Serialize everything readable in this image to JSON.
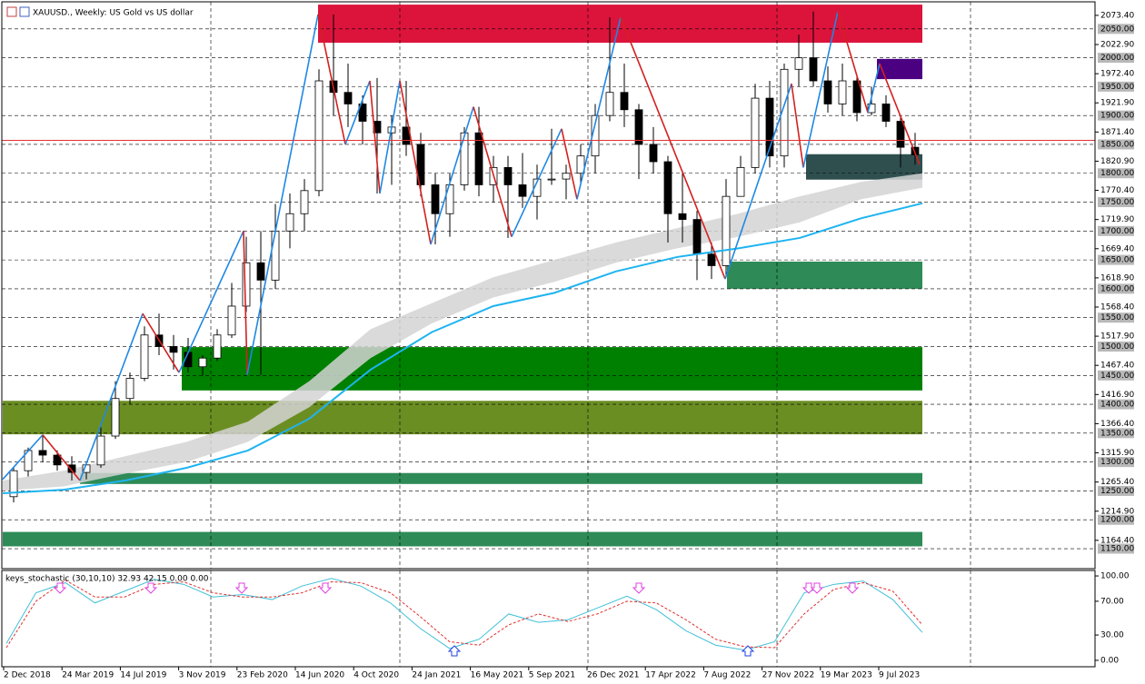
{
  "chart_data": [
    {
      "type": "candlestick",
      "title": "XAUUSD., Weekly:  US Gold vs US dollar",
      "xtick_labels": [
        "2 Dec 2018",
        "24 Mar 2019",
        "14 Jul 2019",
        "3 Nov 2019",
        "23 Feb 2020",
        "14 Jun 2020",
        "4 Oct 2020",
        "24 Jan 2021",
        "16 May 2021",
        "5 Sep 2021",
        "26 Dec 2021",
        "17 Apr 2022",
        "7 Aug 2022",
        "27 Nov 2022",
        "19 Mar 2023",
        "9 Jul 2023"
      ],
      "ohlc": [
        [
          1240,
          1290,
          1230,
          1285
        ],
        [
          1285,
          1325,
          1275,
          1320
        ],
        [
          1320,
          1347,
          1300,
          1312
        ],
        [
          1312,
          1320,
          1285,
          1295
        ],
        [
          1295,
          1310,
          1268,
          1282
        ],
        [
          1282,
          1300,
          1270,
          1295
        ],
        [
          1295,
          1360,
          1290,
          1345
        ],
        [
          1345,
          1440,
          1340,
          1410
        ],
        [
          1410,
          1455,
          1400,
          1445
        ],
        [
          1445,
          1535,
          1440,
          1520
        ],
        [
          1520,
          1557,
          1485,
          1500
        ],
        [
          1500,
          1520,
          1460,
          1490
        ],
        [
          1490,
          1515,
          1455,
          1465
        ],
        [
          1465,
          1485,
          1450,
          1480
        ],
        [
          1480,
          1530,
          1475,
          1520
        ],
        [
          1520,
          1610,
          1515,
          1570
        ],
        [
          1570,
          1690,
          1560,
          1645
        ],
        [
          1645,
          1700,
          1451,
          1615
        ],
        [
          1615,
          1747,
          1600,
          1700
        ],
        [
          1700,
          1765,
          1670,
          1730
        ],
        [
          1730,
          1790,
          1700,
          1770
        ],
        [
          1770,
          1980,
          1760,
          1960
        ],
        [
          1960,
          2075,
          1900,
          1940
        ],
        [
          1940,
          1990,
          1880,
          1920
        ],
        [
          1920,
          1935,
          1850,
          1890
        ],
        [
          1890,
          1965,
          1765,
          1870
        ],
        [
          1870,
          1900,
          1780,
          1880
        ],
        [
          1880,
          1960,
          1830,
          1850
        ],
        [
          1850,
          1870,
          1760,
          1780
        ],
        [
          1780,
          1800,
          1677,
          1730
        ],
        [
          1730,
          1800,
          1690,
          1780
        ],
        [
          1780,
          1880,
          1770,
          1870
        ],
        [
          1870,
          1915,
          1760,
          1780
        ],
        [
          1780,
          1830,
          1750,
          1810
        ],
        [
          1810,
          1830,
          1688,
          1780
        ],
        [
          1780,
          1835,
          1740,
          1760
        ],
        [
          1760,
          1815,
          1720,
          1790
        ],
        [
          1790,
          1877,
          1780,
          1790
        ],
        [
          1790,
          1815,
          1755,
          1800
        ],
        [
          1800,
          1850,
          1780,
          1830
        ],
        [
          1830,
          1920,
          1800,
          1900
        ],
        [
          1900,
          2070,
          1890,
          1940
        ],
        [
          1940,
          1990,
          1880,
          1910
        ],
        [
          1910,
          1920,
          1790,
          1850
        ],
        [
          1850,
          1880,
          1800,
          1820
        ],
        [
          1820,
          1830,
          1680,
          1730
        ],
        [
          1730,
          1800,
          1680,
          1720
        ],
        [
          1720,
          1735,
          1615,
          1660
        ],
        [
          1660,
          1680,
          1617,
          1640
        ],
        [
          1640,
          1790,
          1620,
          1760
        ],
        [
          1760,
          1830,
          1760,
          1810
        ],
        [
          1810,
          1955,
          1800,
          1930
        ],
        [
          1930,
          1960,
          1810,
          1830
        ],
        [
          1830,
          1990,
          1810,
          1980
        ],
        [
          1980,
          2040,
          1950,
          2000
        ],
        [
          2000,
          2080,
          1950,
          1960
        ],
        [
          1960,
          1985,
          1905,
          1920
        ],
        [
          1920,
          1990,
          1900,
          1960
        ],
        [
          1960,
          1970,
          1890,
          1905
        ],
        [
          1905,
          1950,
          1900,
          1920
        ],
        [
          1920,
          1935,
          1880,
          1890
        ],
        [
          1890,
          1900,
          1810,
          1845
        ],
        [
          1845,
          1870,
          1815,
          1832
        ]
      ],
      "ylim": [
        1117,
        2100
      ],
      "yticks": [
        {
          "value": 2073.4,
          "label": "2073.40"
        },
        {
          "value": 2022.9,
          "label": "2022.90"
        },
        {
          "value": 1972.4,
          "label": "1972.40"
        },
        {
          "value": 1921.9,
          "label": "1921.90"
        },
        {
          "value": 1871.4,
          "label": "1871.40"
        },
        {
          "value": 1820.9,
          "label": "1820.90"
        },
        {
          "value": 1770.4,
          "label": "1770.40"
        },
        {
          "value": 1719.9,
          "label": "1719.90"
        },
        {
          "value": 1669.4,
          "label": "1669.40"
        },
        {
          "value": 1618.9,
          "label": "1618.90"
        },
        {
          "value": 1568.4,
          "label": "1568.40"
        },
        {
          "value": 1517.9,
          "label": "1517.90"
        },
        {
          "value": 1467.4,
          "label": "1467.40"
        },
        {
          "value": 1416.9,
          "label": "1416.90"
        },
        {
          "value": 1366.4,
          "label": "1366.40"
        },
        {
          "value": 1315.9,
          "label": "1315.90"
        },
        {
          "value": 1265.4,
          "label": "1265.40"
        },
        {
          "value": 1214.9,
          "label": "1214.90"
        },
        {
          "value": 1164.4,
          "label": "1164.40"
        }
      ],
      "levels": [
        {
          "value": 2050,
          "label": "2050.00"
        },
        {
          "value": 2000,
          "label": "2000.00"
        },
        {
          "value": 1950,
          "label": "1950.00"
        },
        {
          "value": 1900,
          "label": "1900.00"
        },
        {
          "value": 1850,
          "label": "1850.00"
        },
        {
          "value": 1800,
          "label": "1800.00"
        },
        {
          "value": 1750,
          "label": "1750.00"
        },
        {
          "value": 1700,
          "label": "1700.00"
        },
        {
          "value": 1650,
          "label": "1650.00"
        },
        {
          "value": 1600,
          "label": "1600.00"
        },
        {
          "value": 1550,
          "label": "1550.00"
        },
        {
          "value": 1500,
          "label": "1500.00"
        },
        {
          "value": 1450,
          "label": "1450.00"
        },
        {
          "value": 1400,
          "label": "1400.00"
        },
        {
          "value": 1350,
          "label": "1350.00"
        },
        {
          "value": 1300,
          "label": "1300.00"
        },
        {
          "value": 1250,
          "label": "1250.00"
        },
        {
          "value": 1200,
          "label": "1200.00"
        },
        {
          "value": 1150,
          "label": "1150.00"
        }
      ],
      "last_price": 1857,
      "last_price_color": "#e03030",
      "zones": [
        {
          "color": "#dc143c",
          "range": [
            2026,
            2092
          ]
        },
        {
          "color": "#4b0082",
          "range": [
            1963,
            1998
          ]
        },
        {
          "color": "#2f4f4f",
          "range": [
            1789,
            1833
          ]
        },
        {
          "color": "#2e8b57",
          "range": [
            1600,
            1647
          ]
        },
        {
          "color": "#008000",
          "range": [
            1424,
            1499
          ]
        },
        {
          "color": "#6b8e23",
          "range": [
            1348,
            1406
          ]
        },
        {
          "color": "#2e8b57",
          "range": [
            1262,
            1281
          ]
        },
        {
          "color": "#2e8b57",
          "range": [
            1154,
            1179
          ]
        }
      ],
      "band": {
        "color": "#d3d3d3",
        "upper": [
          1268,
          1285,
          1310,
          1335,
          1370,
          1440,
          1530,
          1575,
          1620,
          1650,
          1680,
          1705,
          1730,
          1760,
          1785,
          1800
        ],
        "lower": [
          1250,
          1258,
          1280,
          1300,
          1335,
          1395,
          1480,
          1540,
          1585,
          1612,
          1645,
          1670,
          1690,
          1715,
          1755,
          1775
        ]
      },
      "moving_average": {
        "color": "#1eb4f0",
        "values": [
          1246,
          1252,
          1268,
          1290,
          1320,
          1375,
          1460,
          1525,
          1570,
          1593,
          1630,
          1655,
          1670,
          1688,
          1722,
          1748
        ]
      },
      "zigzag": {
        "up_color": "#1e88e5",
        "down_color": "#d32020",
        "values": [
          1270,
          1347,
          1268,
          1557,
          1455,
          1700,
          1451,
          2075,
          1850,
          1960,
          1765,
          1960,
          1677,
          1915,
          1690,
          1877,
          1755,
          2070,
          1617,
          1955,
          1810,
          2080,
          1905,
          1990,
          1815
        ]
      }
    },
    {
      "type": "line",
      "title": "keys_stochastic (30,10,10) 32.93 42.15 0.00 0.00",
      "series": [
        {
          "color": "#40c0d8",
          "dashed": false,
          "values": [
            20,
            80,
            92,
            68,
            82,
            96,
            90,
            75,
            78,
            72,
            88,
            97,
            88,
            68,
            38,
            14,
            25,
            55,
            45,
            48,
            62,
            76,
            60,
            35,
            18,
            12,
            22,
            80,
            90,
            94,
            72,
            33
          ]
        },
        {
          "color": "#e03030",
          "dashed": true,
          "values": [
            15,
            70,
            95,
            75,
            75,
            90,
            93,
            80,
            75,
            75,
            80,
            93,
            92,
            80,
            52,
            22,
            18,
            42,
            55,
            46,
            55,
            70,
            68,
            48,
            25,
            16,
            15,
            55,
            84,
            92,
            82,
            42
          ]
        }
      ],
      "ylim": [
        -7.6,
        106.5
      ],
      "yticks": [
        {
          "value": 100,
          "label": "100.00"
        },
        {
          "value": 70,
          "label": "70.00"
        },
        {
          "value": 30,
          "label": "30.00"
        },
        {
          "value": 0,
          "label": "0.00"
        }
      ]
    }
  ]
}
